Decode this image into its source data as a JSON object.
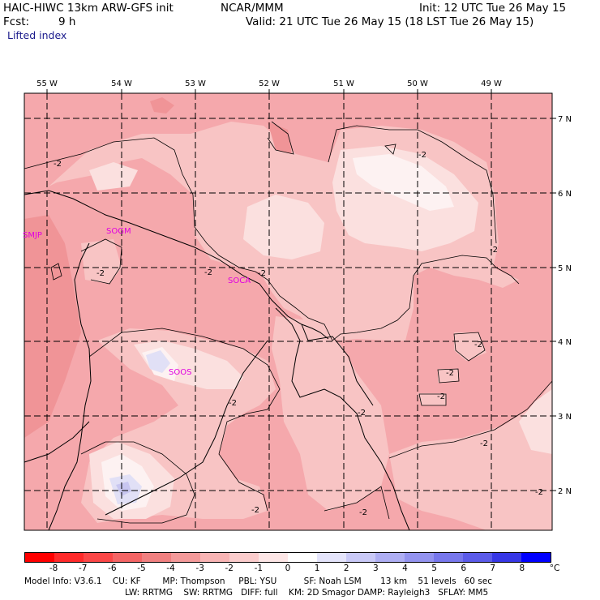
{
  "header": {
    "model": "HAIC-HIWC 13km ARW-GFS init",
    "org": "NCAR/MMM",
    "init": "Init: 12 UTC Tue 26 May 15",
    "fcst_label": "Fcst:",
    "fcst_value": "9 h",
    "valid": "Valid: 21 UTC Tue 26 May 15 (18 LST Tue 26 May 15)",
    "field": "Lifted index"
  },
  "map": {
    "lon_labels": [
      "55 W",
      "54 W",
      "53 W",
      "52 W",
      "51 W",
      "50 W",
      "49 W"
    ],
    "lat_labels": [
      "7 N",
      "6 N",
      "5 N",
      "4 N",
      "3 N",
      "2 N"
    ],
    "stations": [
      "SMJP",
      "SOGM",
      "SOCA",
      "SOOS"
    ],
    "contour_labels": [
      "-2",
      "-2",
      "-2",
      "-2",
      "-2",
      "-2",
      "-2",
      "-2",
      "-2",
      "-2",
      "-2",
      "-2",
      "-2",
      "-2"
    ],
    "colors": {
      "level_m3": "#f5a8ac",
      "level_m2": "#f8c4c4",
      "level_m1": "#fbe0df",
      "level_m4": "#f09497",
      "level_0": "#fdf2f2",
      "level_1": "#e1e0f6",
      "level_2": "#c8c6f0",
      "station": "#e000e0"
    }
  },
  "colorbar": {
    "labels": [
      "-8",
      "-7",
      "-6",
      "-5",
      "-4",
      "-3",
      "-2",
      "-1",
      "0",
      "1",
      "2",
      "3",
      "4",
      "5",
      "6",
      "7",
      "8"
    ],
    "unit": "°C",
    "colors": [
      "#ff0000",
      "#ff2a2a",
      "#fb4747",
      "#f46565",
      "#f08080",
      "#f49a9a",
      "#f8b4b4",
      "#fbcccc",
      "#fde6e6",
      "#ffffff",
      "#e4e4fb",
      "#c9c9f7",
      "#aeaef3",
      "#9393ef",
      "#7777ec",
      "#5b5be9",
      "#3737e6",
      "#0000ff"
    ]
  },
  "footer": {
    "line1": "Model Info: V3.6.1    CU: KF        MP: Thompson     PBL: YSU          SF: Noah LSM       13 km    51 levels   60 sec",
    "line2": "LW: RRTMG    SW: RRTMG   DIFF: full    KM: 2D Smagor DAMP: Rayleigh3   SFLAY: MM5"
  }
}
